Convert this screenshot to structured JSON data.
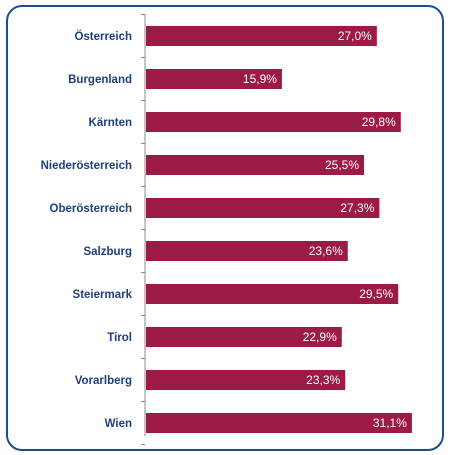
{
  "chart_data": {
    "type": "bar",
    "orientation": "horizontal",
    "categories": [
      "Österreich",
      "Burgenland",
      "Kärnten",
      "Niederösterreich",
      "Oberösterreich",
      "Salzburg",
      "Steiermark",
      "Tirol",
      "Vorarlberg",
      "Wien"
    ],
    "values": [
      27.0,
      15.9,
      29.8,
      25.5,
      27.3,
      23.6,
      29.5,
      22.9,
      23.3,
      31.1
    ],
    "value_labels": [
      "27,0%",
      "15,9%",
      "29,8%",
      "25,5%",
      "27,3%",
      "23,6%",
      "29,5%",
      "22,9%",
      "23,3%",
      "31,1%"
    ],
    "title": "",
    "xlabel": "",
    "ylabel": "",
    "xlim": [
      0,
      36
    ],
    "grid": false,
    "legend": "none",
    "colors": {
      "bar": "#9b1b45",
      "category_text": "#1f3f7a",
      "label_text": "#ffffff",
      "border": "#1f4e8c"
    }
  }
}
